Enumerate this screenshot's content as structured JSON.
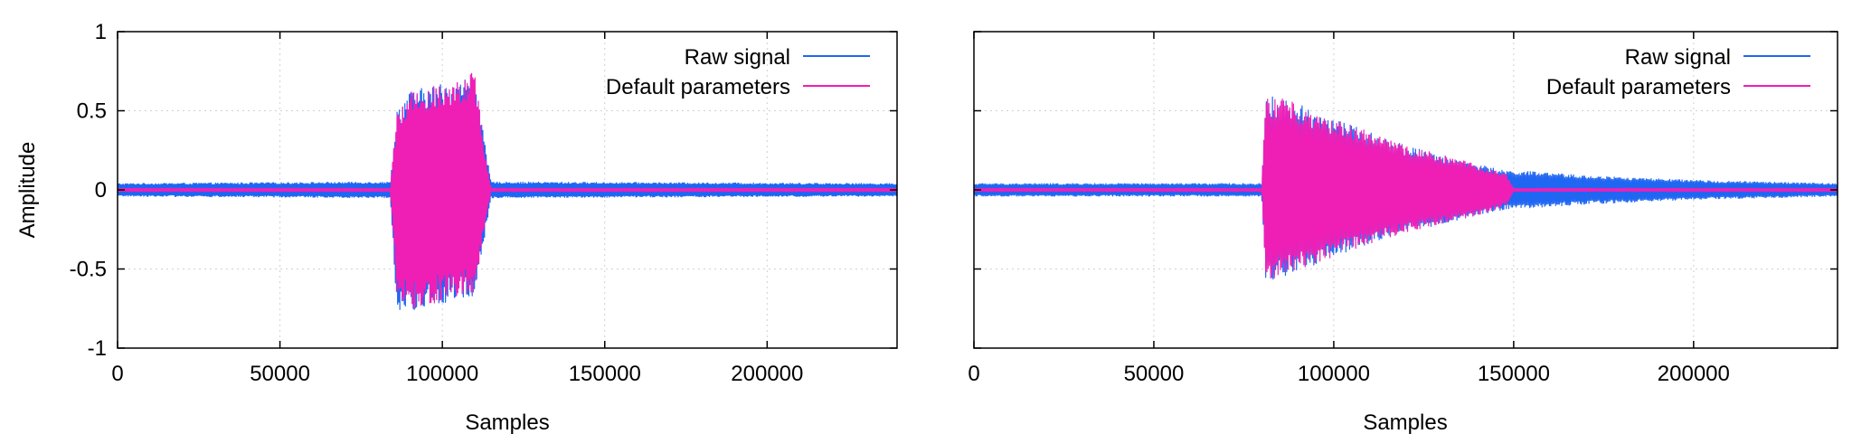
{
  "colors": {
    "raw": "#1f66f2",
    "default": "#ef1fb6",
    "grid": "#d0d0d0"
  },
  "chart_data": [
    {
      "type": "line",
      "title": "",
      "xlabel": "Samples",
      "ylabel": "Amplitude",
      "xlim": [
        0,
        240000
      ],
      "ylim": [
        -1,
        1
      ],
      "xticks": [
        0,
        50000,
        100000,
        150000,
        200000
      ],
      "xtick_labels": [
        "0",
        "50000",
        "100000",
        "150000",
        "200000"
      ],
      "yticks": [
        -1,
        -0.5,
        0,
        0.5,
        1
      ],
      "ytick_labels": [
        "-1",
        "-0.5",
        "0",
        "0.5",
        "1"
      ],
      "grid": true,
      "legend_position": "top-right",
      "series": [
        {
          "name": "Raw signal",
          "envelope": {
            "x": [
              0,
              84000,
              86000,
              90000,
              100000,
              110000,
              113000,
              115000,
              240000
            ],
            "upper": [
              0.04,
              0.05,
              0.52,
              0.62,
              0.68,
              0.72,
              0.3,
              0.05,
              0.04
            ],
            "lower": [
              -0.04,
              -0.05,
              -0.75,
              -0.78,
              -0.72,
              -0.68,
              -0.3,
              -0.05,
              -0.04
            ]
          }
        },
        {
          "name": "Default parameters",
          "envelope": {
            "x": [
              0,
              84000,
              86000,
              90000,
              100000,
              110000,
              113000,
              115000,
              240000
            ],
            "upper": [
              0.01,
              0.01,
              0.5,
              0.62,
              0.7,
              0.74,
              0.25,
              0.01,
              0.01
            ],
            "lower": [
              -0.01,
              -0.01,
              -0.7,
              -0.76,
              -0.7,
              -0.65,
              -0.25,
              -0.01,
              -0.01
            ]
          }
        }
      ]
    },
    {
      "type": "line",
      "title": "",
      "xlabel": "Samples",
      "ylabel": "",
      "xlim": [
        0,
        240000
      ],
      "ylim": [
        -1,
        1
      ],
      "xticks": [
        0,
        50000,
        100000,
        150000,
        200000
      ],
      "xtick_labels": [
        "0",
        "50000",
        "100000",
        "150000",
        "200000"
      ],
      "yticks": [
        -1,
        -0.5,
        0,
        0.5,
        1
      ],
      "ytick_labels": [],
      "grid": true,
      "legend_position": "top-right",
      "series": [
        {
          "name": "Raw signal",
          "envelope": {
            "x": [
              0,
              80000,
              81000,
              90000,
              100000,
              120000,
              140000,
              148000,
              152000,
              170000,
              200000,
              240000
            ],
            "upper": [
              0.04,
              0.04,
              0.6,
              0.55,
              0.45,
              0.28,
              0.16,
              0.12,
              0.12,
              0.09,
              0.06,
              0.04
            ],
            "lower": [
              -0.04,
              -0.04,
              -0.58,
              -0.52,
              -0.42,
              -0.27,
              -0.16,
              -0.12,
              -0.12,
              -0.09,
              -0.06,
              -0.04
            ]
          }
        },
        {
          "name": "Default parameters",
          "envelope": {
            "x": [
              0,
              80000,
              81000,
              90000,
              100000,
              120000,
              140000,
              148000,
              150000,
              240000
            ],
            "upper": [
              0.01,
              0.01,
              0.6,
              0.55,
              0.45,
              0.28,
              0.16,
              0.1,
              0.01,
              0.01
            ],
            "lower": [
              -0.01,
              -0.01,
              -0.58,
              -0.52,
              -0.42,
              -0.27,
              -0.16,
              -0.1,
              -0.01,
              -0.01
            ]
          }
        }
      ]
    }
  ]
}
